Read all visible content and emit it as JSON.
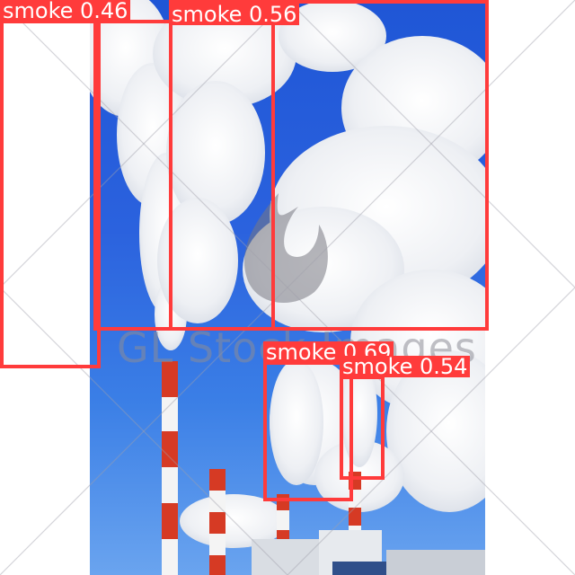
{
  "watermark_text": "GL Stock Images",
  "detections": [
    {
      "label": "smoke 0.46"
    },
    {
      "label": "smoke 0.56"
    },
    {
      "label": "smoke 0.69"
    },
    {
      "label": "smoke 0.54"
    }
  ],
  "colors": {
    "box": "#ff3b3b",
    "label_text": "#ffffff",
    "sky": "#2b62de",
    "smoke": "#f1f3f6",
    "chimney_red": "#d63a24",
    "chimney_white": "#f4f4f4"
  }
}
